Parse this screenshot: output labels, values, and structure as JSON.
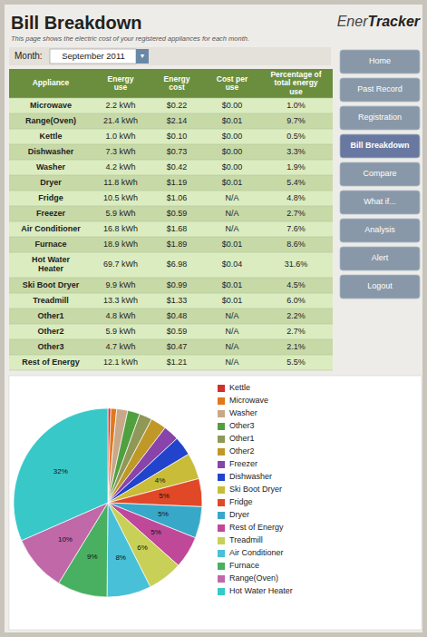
{
  "chart_data": {
    "type": "pie",
    "title": "Bill Breakdown",
    "subtitle": "This page shows the electric cost of your registered appliances for each month.",
    "categories": [
      "Kettle",
      "Microwave",
      "Washer",
      "Other3",
      "Other1",
      "Other2",
      "Freezer",
      "Dishwasher",
      "Ski Boot Dryer",
      "Fridge",
      "Dryer",
      "Rest of Energy",
      "Treadmill",
      "Air Conditioner",
      "Furnace",
      "Range(Oven)",
      "Hot Water Heater"
    ],
    "values": [
      0.5,
      0.999,
      1.898,
      2.098,
      2.198,
      2.697,
      2.697,
      3.297,
      4.496,
      4.795,
      5.395,
      5.495,
      5.994,
      7.592,
      8.591,
      9.69,
      31.568
    ],
    "value_labels": [
      null,
      null,
      null,
      null,
      null,
      null,
      null,
      null,
      "4%",
      "5%",
      "5%",
      "5%",
      "6%",
      "8%",
      "9%",
      "10%",
      "32%"
    ],
    "colors": [
      "#d03030",
      "#e07820",
      "#c8a888",
      "#50a040",
      "#909858",
      "#c09828",
      "#8844aa",
      "#2244cc",
      "#c8bc38",
      "#e04828",
      "#38a8c8",
      "#c04898",
      "#c8d058",
      "#48c0d8",
      "#48b060",
      "#c068a8",
      "#38c8c8"
    ],
    "data_labels": true,
    "legend": "right"
  },
  "page": {
    "logo": [
      "Ener",
      "Tracker"
    ],
    "month_label": "Month:",
    "month": "September 2011",
    "month_button": "▼",
    "nav_buttons": [
      "Home",
      "Past Record",
      "Registration",
      "Bill Breakdown",
      "Compare",
      "What if...",
      "Analysis",
      "Alert",
      "Logout"
    ],
    "nav_active": "Bill Breakdown",
    "colors": {
      "background": "#c8c4bc",
      "panel": "#eeece8",
      "table_header": "#6b8e3e",
      "row_odd": "#daecc0",
      "row_even": "#c8d9a8",
      "nav": "#8898a8",
      "nav_active": "#6878a0"
    },
    "table": {
      "columns": [
        "Appliance",
        "Energy\nuse",
        "Energy\ncost",
        "Cost per\nuse",
        "Percentage of\ntotal energy\nuse"
      ],
      "rows": [
        [
          "Microwave",
          "2.2 kWh",
          "$0.22",
          "$0.00",
          "1.0%"
        ],
        [
          "Range(Oven)",
          "21.4 kWh",
          "$2.14",
          "$0.01",
          "9.7%"
        ],
        [
          "Kettle",
          "1.0 kWh",
          "$0.10",
          "$0.00",
          "0.5%"
        ],
        [
          "Dishwasher",
          "7.3 kWh",
          "$0.73",
          "$0.00",
          "3.3%"
        ],
        [
          "Washer",
          "4.2 kWh",
          "$0.42",
          "$0.00",
          "1.9%"
        ],
        [
          "Dryer",
          "11.8 kWh",
          "$1.19",
          "$0.01",
          "5.4%"
        ],
        [
          "Fridge",
          "10.5 kWh",
          "$1.06",
          "N/A",
          "4.8%"
        ],
        [
          "Freezer",
          "5.9 kWh",
          "$0.59",
          "N/A",
          "2.7%"
        ],
        [
          "Air Conditioner",
          "16.8 kWh",
          "$1.68",
          "N/A",
          "7.6%"
        ],
        [
          "Furnace",
          "18.9 kWh",
          "$1.89",
          "$0.01",
          "8.6%"
        ],
        [
          "Hot Water\nHeater",
          "69.7 kWh",
          "$6.98",
          "$0.04",
          "31.6%"
        ],
        [
          "Ski Boot Dryer",
          "9.9 kWh",
          "$0.99",
          "$0.01",
          "4.5%"
        ],
        [
          "Treadmill",
          "13.3 kWh",
          "$1.33",
          "$0.01",
          "6.0%"
        ],
        [
          "Other1",
          "4.8 kWh",
          "$0.48",
          "N/A",
          "2.2%"
        ],
        [
          "Other2",
          "5.9 kWh",
          "$0.59",
          "N/A",
          "2.7%"
        ],
        [
          "Other3",
          "4.7 kWh",
          "$0.47",
          "N/A",
          "2.1%"
        ],
        [
          "Rest of Energy",
          "12.1 kWh",
          "$1.21",
          "N/A",
          "5.5%"
        ]
      ]
    }
  }
}
